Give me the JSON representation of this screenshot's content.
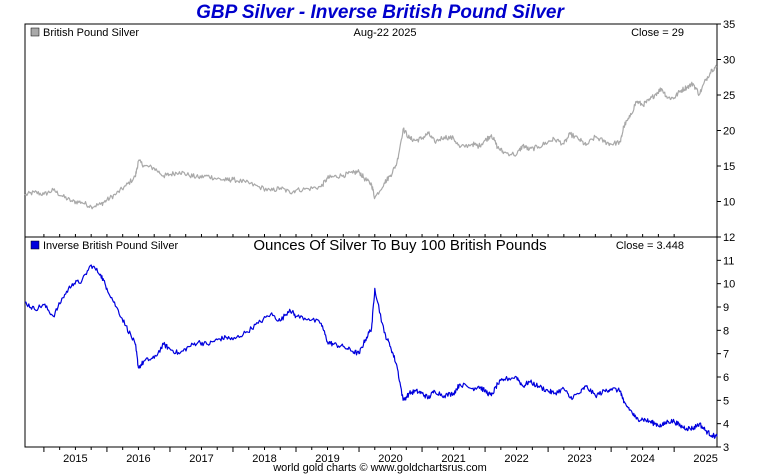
{
  "page": {
    "title": "GBP Silver - Inverse British Pound Silver",
    "footer": "world gold charts © www.goldchartsrus.com"
  },
  "colors": {
    "title": "#0000cc",
    "top_series": "#a9a9a9",
    "bottom_series": "#0000dd",
    "frame": "#000000"
  },
  "chart_data": [
    {
      "type": "line",
      "panel": "top",
      "title": "",
      "date_label": "Aug-22  2025",
      "close_label": "Close = 29",
      "legend": "British Pound Silver",
      "ylim": [
        5,
        35
      ],
      "y_ticks": [
        10,
        15,
        20,
        25,
        30,
        35
      ],
      "xlim": [
        2014.7,
        2025.68
      ],
      "x_ticks": [
        "2015",
        "2016",
        "2017",
        "2018",
        "2019",
        "2020",
        "2021",
        "2022",
        "2023",
        "2024",
        "2025"
      ],
      "series": [
        {
          "name": "British Pound Silver",
          "x": [
            2014.7,
            2014.85,
            2015.0,
            2015.15,
            2015.3,
            2015.45,
            2015.6,
            2015.75,
            2015.9,
            2016.0,
            2016.15,
            2016.3,
            2016.45,
            2016.5,
            2016.6,
            2016.75,
            2016.9,
            2017.0,
            2017.15,
            2017.3,
            2017.45,
            2017.6,
            2017.75,
            2017.9,
            2018.0,
            2018.2,
            2018.4,
            2018.6,
            2018.75,
            2018.9,
            2019.0,
            2019.2,
            2019.4,
            2019.5,
            2019.6,
            2019.75,
            2019.9,
            2020.0,
            2020.1,
            2020.2,
            2020.25,
            2020.4,
            2020.5,
            2020.6,
            2020.7,
            2020.8,
            2020.9,
            2021.0,
            2021.1,
            2021.2,
            2021.35,
            2021.5,
            2021.6,
            2021.8,
            2021.9,
            2022.0,
            2022.1,
            2022.2,
            2022.3,
            2022.5,
            2022.6,
            2022.7,
            2022.85,
            2023.0,
            2023.1,
            2023.25,
            2023.35,
            2023.5,
            2023.6,
            2023.75,
            2023.9,
            2024.0,
            2024.15,
            2024.2,
            2024.3,
            2024.4,
            2024.5,
            2024.6,
            2024.7,
            2024.8,
            2024.9,
            2025.0,
            2025.1,
            2025.2,
            2025.3,
            2025.4,
            2025.5,
            2025.6,
            2025.68
          ],
          "values": [
            10.9,
            11.3,
            11.0,
            11.6,
            10.7,
            10.0,
            9.9,
            9.3,
            9.6,
            10.2,
            11.1,
            12.2,
            13.5,
            15.7,
            15.0,
            14.7,
            13.6,
            13.8,
            14.2,
            13.7,
            13.4,
            13.6,
            13.2,
            13.0,
            13.1,
            12.7,
            12.1,
            11.5,
            11.9,
            11.3,
            11.6,
            11.8,
            12.1,
            13.3,
            13.5,
            13.7,
            14.0,
            14.2,
            13.1,
            12.4,
            10.5,
            12.6,
            13.7,
            15.4,
            20.2,
            18.9,
            18.6,
            18.9,
            19.6,
            18.4,
            19.1,
            18.9,
            17.6,
            18.1,
            17.8,
            18.6,
            19.4,
            17.6,
            16.9,
            16.6,
            17.9,
            17.3,
            17.7,
            18.4,
            18.8,
            18.1,
            19.5,
            18.7,
            17.9,
            19.1,
            18.4,
            18.1,
            18.4,
            20.6,
            21.9,
            24.1,
            23.6,
            24.2,
            25.1,
            25.9,
            24.6,
            24.6,
            25.6,
            26.1,
            26.6,
            25.1,
            27.1,
            28.6,
            29.0
          ]
        }
      ]
    },
    {
      "type": "line",
      "panel": "bottom",
      "title": "Ounces Of Silver To Buy 100 British Pounds",
      "close_label": "Close = 3.448",
      "legend": "Inverse British Pound Silver",
      "ylim": [
        3,
        12
      ],
      "y_ticks": [
        3,
        4,
        5,
        6,
        7,
        8,
        9,
        10,
        11,
        12
      ],
      "xlim": [
        2014.7,
        2025.68
      ],
      "x_ticks": [
        "2015",
        "2016",
        "2017",
        "2018",
        "2019",
        "2020",
        "2021",
        "2022",
        "2023",
        "2024",
        "2025"
      ],
      "series": [
        {
          "name": "Inverse British Pound Silver",
          "x": [
            2014.7,
            2014.85,
            2015.0,
            2015.15,
            2015.3,
            2015.45,
            2015.6,
            2015.75,
            2015.9,
            2016.0,
            2016.15,
            2016.3,
            2016.45,
            2016.5,
            2016.6,
            2016.75,
            2016.9,
            2017.0,
            2017.15,
            2017.3,
            2017.45,
            2017.6,
            2017.75,
            2017.9,
            2018.0,
            2018.2,
            2018.4,
            2018.6,
            2018.75,
            2018.9,
            2019.0,
            2019.2,
            2019.4,
            2019.5,
            2019.6,
            2019.75,
            2019.9,
            2020.0,
            2020.1,
            2020.2,
            2020.25,
            2020.4,
            2020.5,
            2020.6,
            2020.7,
            2020.8,
            2020.9,
            2021.0,
            2021.1,
            2021.2,
            2021.35,
            2021.5,
            2021.6,
            2021.8,
            2021.9,
            2022.0,
            2022.1,
            2022.2,
            2022.3,
            2022.5,
            2022.6,
            2022.7,
            2022.85,
            2023.0,
            2023.1,
            2023.25,
            2023.35,
            2023.5,
            2023.6,
            2023.75,
            2023.9,
            2024.0,
            2024.15,
            2024.2,
            2024.3,
            2024.4,
            2024.5,
            2024.6,
            2024.7,
            2024.8,
            2024.9,
            2025.0,
            2025.1,
            2025.2,
            2025.3,
            2025.4,
            2025.5,
            2025.6,
            2025.68
          ],
          "values": [
            9.2,
            8.9,
            9.1,
            8.6,
            9.4,
            10.0,
            10.1,
            10.8,
            10.4,
            9.8,
            9.0,
            8.2,
            7.4,
            6.4,
            6.7,
            6.8,
            7.4,
            7.2,
            7.0,
            7.3,
            7.5,
            7.4,
            7.6,
            7.7,
            7.6,
            7.9,
            8.3,
            8.7,
            8.4,
            8.9,
            8.6,
            8.5,
            8.3,
            7.5,
            7.4,
            7.3,
            7.1,
            7.0,
            7.6,
            8.1,
            9.8,
            7.9,
            7.3,
            6.5,
            5.0,
            5.3,
            5.4,
            5.3,
            5.1,
            5.4,
            5.2,
            5.3,
            5.7,
            5.5,
            5.6,
            5.4,
            5.2,
            5.7,
            5.9,
            6.0,
            5.6,
            5.8,
            5.6,
            5.4,
            5.3,
            5.5,
            5.1,
            5.3,
            5.6,
            5.2,
            5.4,
            5.5,
            5.4,
            4.9,
            4.6,
            4.2,
            4.2,
            4.1,
            4.0,
            3.9,
            4.1,
            4.1,
            3.9,
            3.8,
            3.8,
            4.0,
            3.7,
            3.5,
            3.448
          ]
        }
      ]
    }
  ]
}
